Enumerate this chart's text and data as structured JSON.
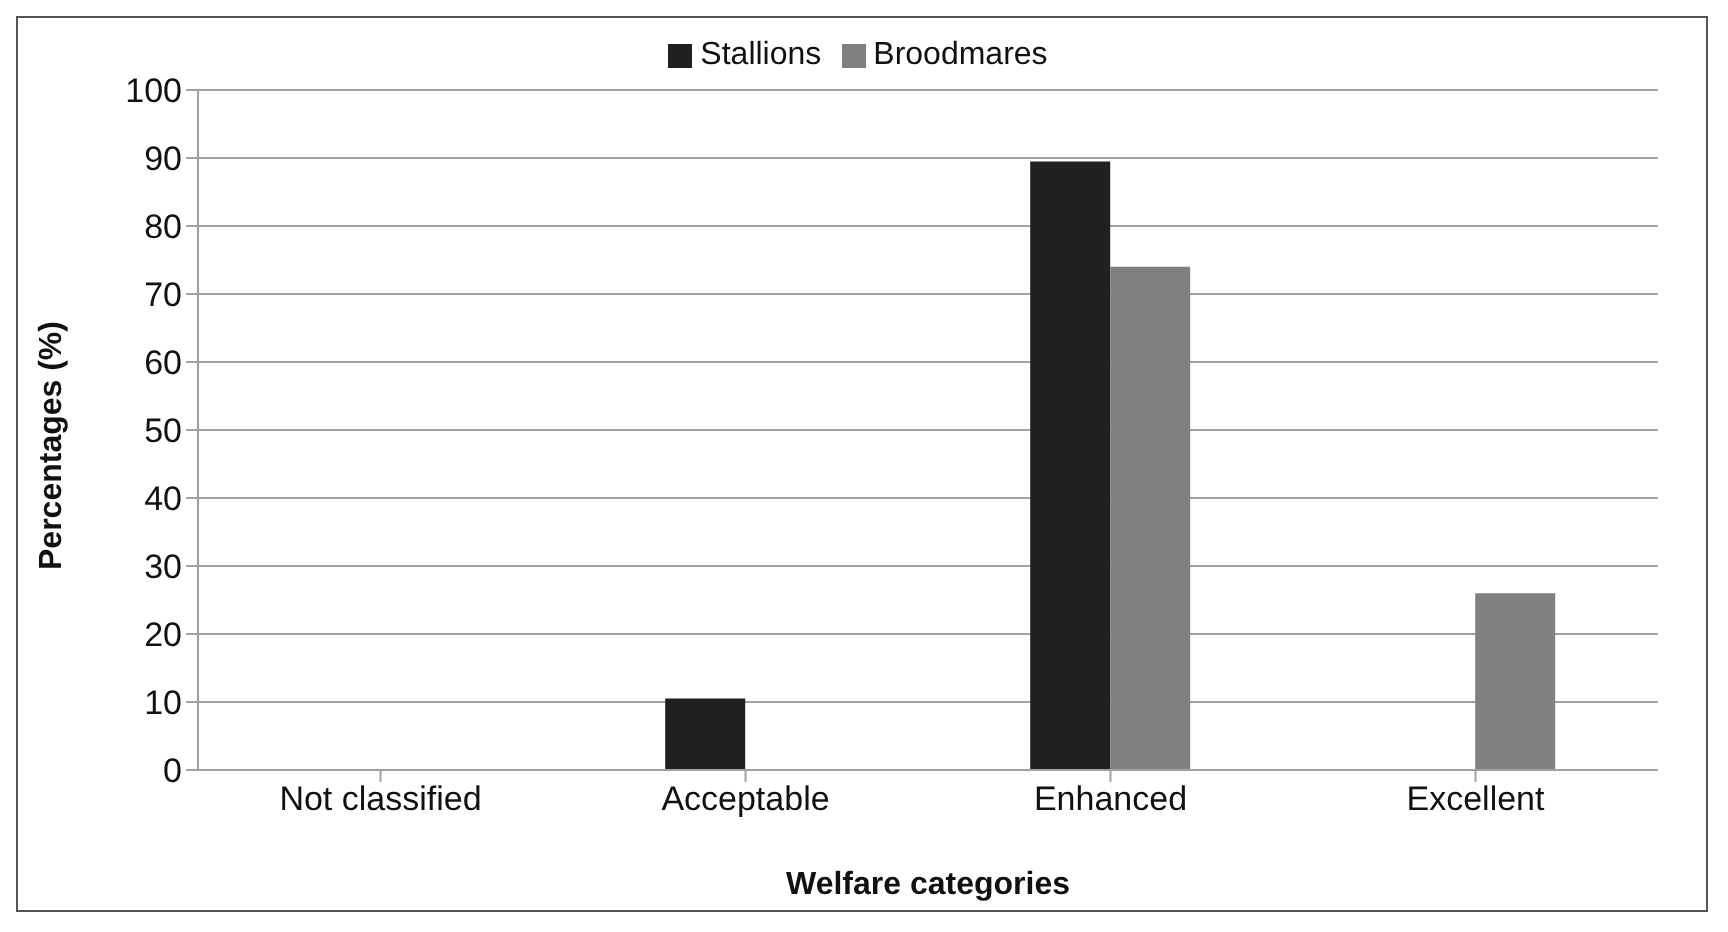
{
  "chart_data": {
    "type": "bar",
    "xlabel": "Welfare categories",
    "ylabel": "Percentages (%)",
    "categories": [
      "Not classified",
      "Acceptable",
      "Enhanced",
      "Excellent"
    ],
    "series": [
      {
        "name": "Stallions",
        "color": "#202020",
        "values": [
          0,
          10.5,
          89.5,
          0
        ]
      },
      {
        "name": "Broodmares",
        "color": "#808080",
        "values": [
          0,
          0,
          74,
          26
        ]
      }
    ],
    "ylim": [
      0,
      100
    ],
    "yticks": [
      0,
      10,
      20,
      30,
      40,
      50,
      60,
      70,
      80,
      90,
      100
    ],
    "grid": "y",
    "legend": "top"
  }
}
